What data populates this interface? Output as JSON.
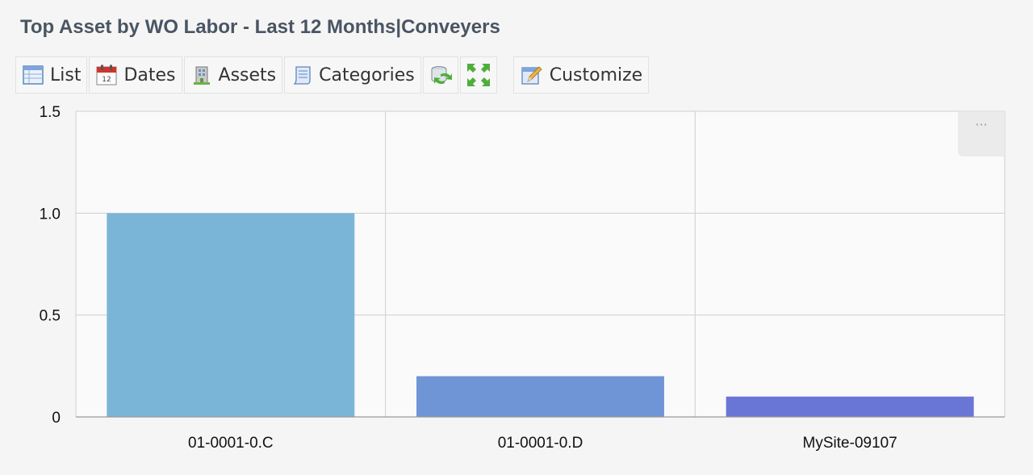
{
  "header": {
    "title": "Top Asset by WO Labor - Last 12 Months|Conveyers"
  },
  "toolbar": {
    "list_label": "List",
    "dates_label": "Dates",
    "assets_label": "Assets",
    "categories_label": "Categories",
    "customize_label": "Customize",
    "icons": [
      "list-icon",
      "calendar-icon",
      "building-icon",
      "scroll-icon",
      "refresh-icon",
      "expand-icon",
      "edit-icon"
    ]
  },
  "chart_menu": {
    "label": "···"
  },
  "chart_data": {
    "type": "bar",
    "categories": [
      "01-0001-0.C",
      "01-0001-0.D",
      "MySite-09107"
    ],
    "values": [
      1.0,
      0.2,
      0.1
    ],
    "colors": [
      "#7ab5d8",
      "#6f95d6",
      "#6a76d6"
    ],
    "ylim": [
      0,
      1.5
    ],
    "yticks": [
      0,
      0.5,
      1.0,
      1.5
    ],
    "ytick_labels": [
      "0",
      "0.5",
      "1.0",
      "1.5"
    ],
    "grid": true,
    "title": "",
    "xlabel": "",
    "ylabel": ""
  }
}
